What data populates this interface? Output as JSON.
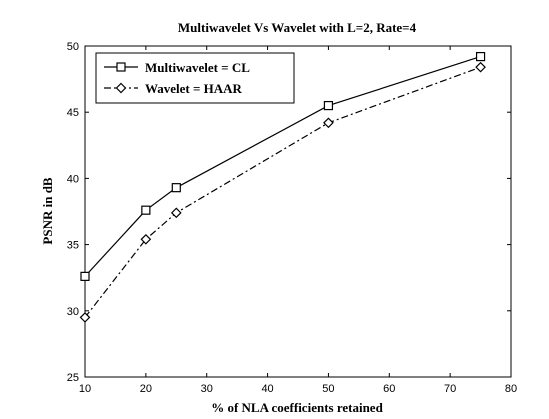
{
  "chart_data": {
    "type": "line",
    "title": "Multiwavelet Vs Wavelet with L=2, Rate=4",
    "xlabel": "% of NLA coefficients retained",
    "ylabel": "PSNR in dB",
    "xlim": [
      10,
      80
    ],
    "ylim": [
      25,
      50
    ],
    "xticks": [
      10,
      20,
      30,
      40,
      50,
      60,
      70,
      80
    ],
    "yticks": [
      25,
      30,
      35,
      40,
      45,
      50
    ],
    "grid": false,
    "legend_position": "top-left",
    "x": [
      10,
      20,
      25,
      50,
      75
    ],
    "series": [
      {
        "name": "Multiwavelet = CL",
        "values": [
          32.6,
          37.6,
          39.3,
          45.5,
          49.2
        ],
        "marker": "square",
        "line_style": "solid",
        "color": "#000000"
      },
      {
        "name": "Wavelet = HAAR",
        "values": [
          29.5,
          35.4,
          37.4,
          44.2,
          48.4
        ],
        "marker": "diamond",
        "line_style": "dash-dot",
        "color": "#000000"
      }
    ]
  }
}
